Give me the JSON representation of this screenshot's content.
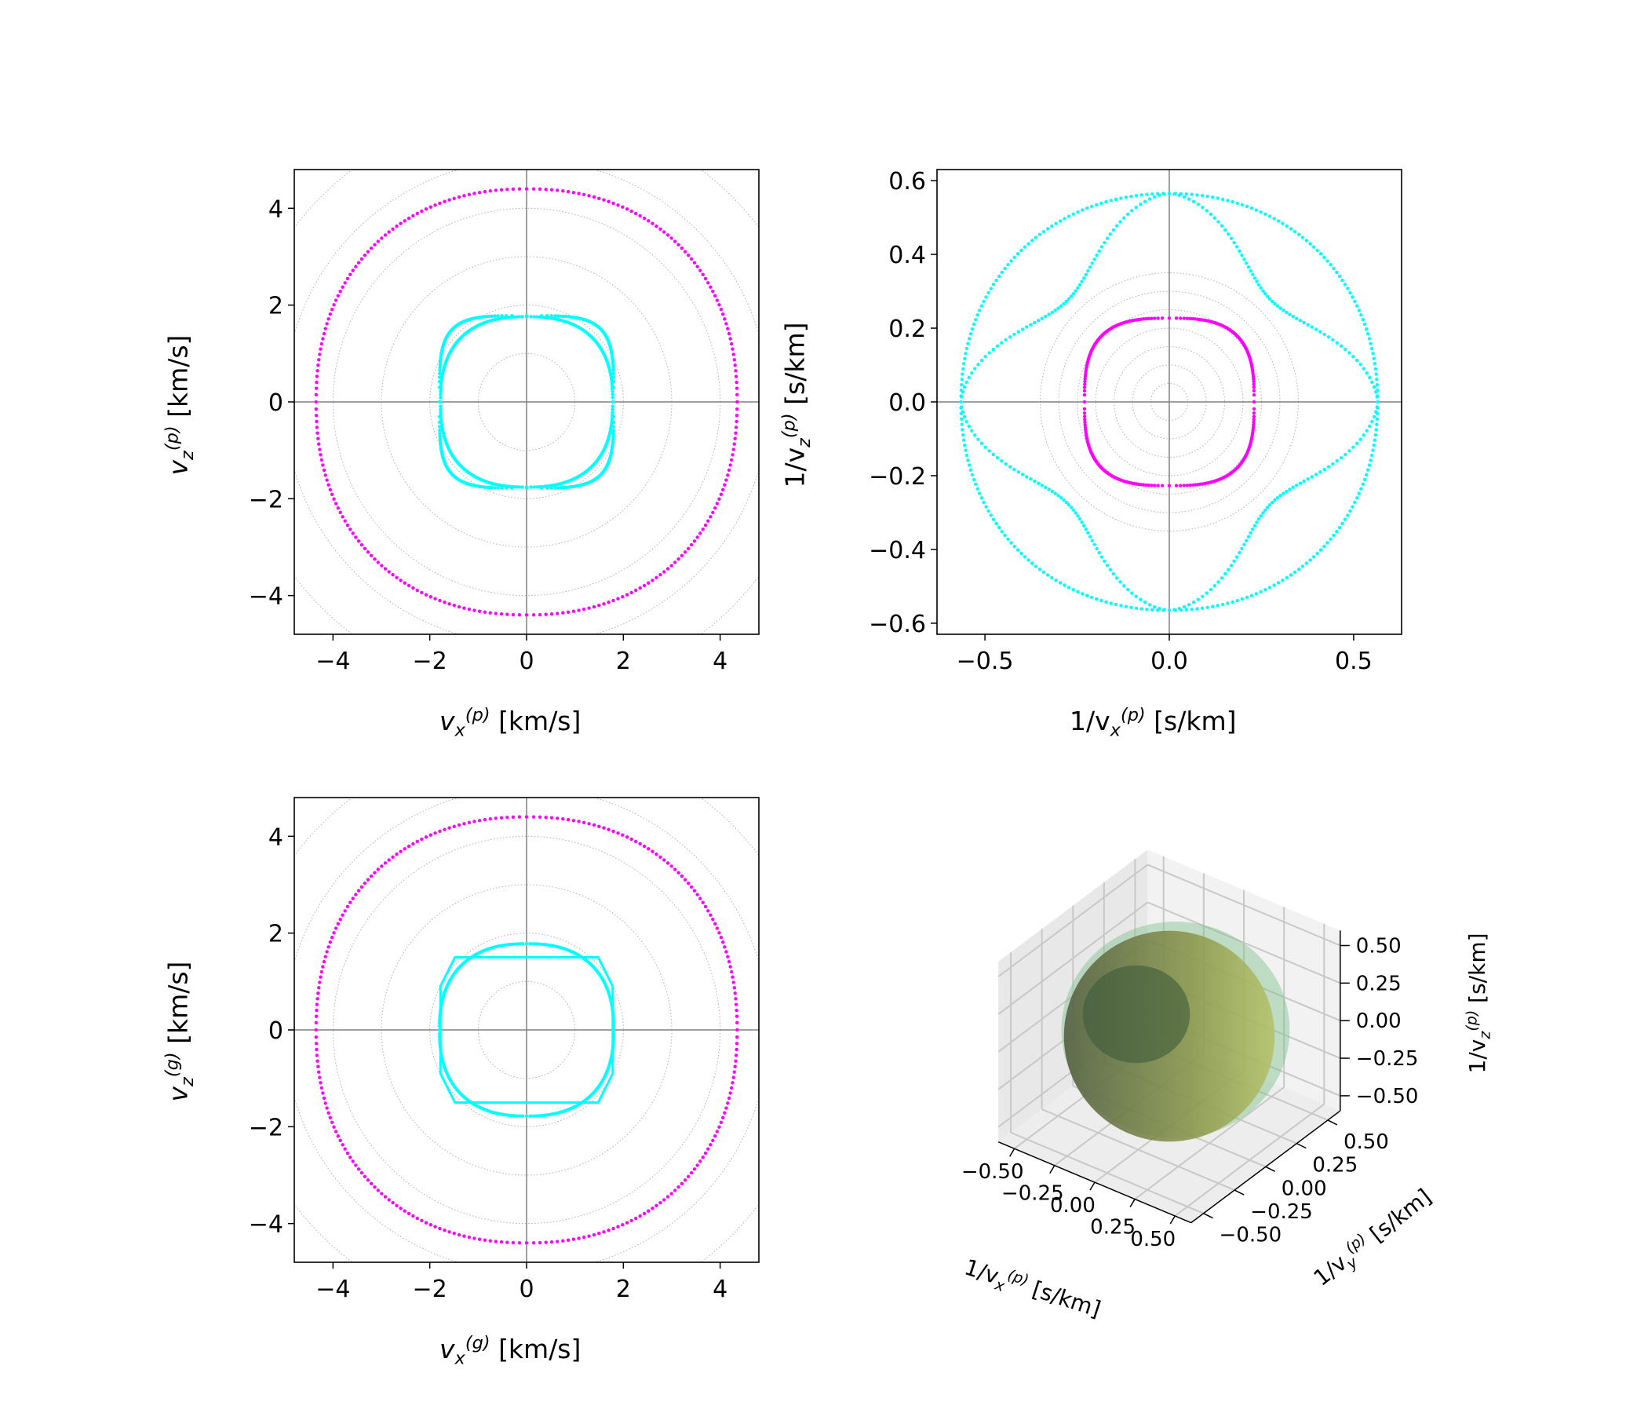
{
  "colors": {
    "cyan": "#00ffff",
    "magenta": "#ff00ff",
    "axis": "#000000",
    "zero_line": "#808080",
    "grid_circle": "#b0b0b0",
    "pane": "#f2f2f2",
    "grid3d": "#c8c8c8"
  },
  "chart_data": [
    {
      "type": "scatter",
      "panel": "top-left",
      "xlabel": {
        "base": "v",
        "sub": "x",
        "sup": "(p)",
        "unit": "[km/s]"
      },
      "ylabel": {
        "base": "v",
        "sub": "z",
        "sup": "(p)",
        "unit": "[km/s]"
      },
      "xlim": [
        -4.8,
        4.8
      ],
      "ylim": [
        -4.8,
        4.8
      ],
      "xticks": [
        -4,
        -2,
        0,
        2,
        4
      ],
      "yticks": [
        -4,
        -2,
        0,
        2,
        4
      ],
      "xtick_labels": [
        "−4",
        "−2",
        "0",
        "2",
        "4"
      ],
      "ytick_labels": [
        "−4",
        "−2",
        "0",
        "2",
        "4"
      ],
      "grid": "concentric dotted circles",
      "grid_radii": [
        1,
        2,
        3,
        4,
        5,
        6
      ],
      "series": [
        {
          "color": "magenta",
          "style": "dots",
          "shape": "superellipse",
          "a": 4.35,
          "b": 4.4,
          "n": 2.2
        },
        {
          "color": "cyan",
          "style": "dots",
          "shape": "superellipse",
          "a": 1.8,
          "b": 1.78,
          "n": 4.2
        },
        {
          "color": "cyan",
          "style": "dots",
          "shape": "superellipse",
          "a": 1.78,
          "b": 1.76,
          "n": 2.5
        }
      ]
    },
    {
      "type": "scatter",
      "panel": "top-right",
      "xlabel": {
        "base": "1/v",
        "sub": "x",
        "sup": "(p)",
        "unit": "[s/km]"
      },
      "ylabel": {
        "base": "1/v",
        "sub": "z",
        "sup": "(p)",
        "unit": "[s/km]"
      },
      "xlim": [
        -0.63,
        0.63
      ],
      "ylim": [
        -0.63,
        0.63
      ],
      "xticks": [
        -0.5,
        0.0,
        0.5
      ],
      "yticks": [
        -0.6,
        -0.4,
        -0.2,
        0.0,
        0.2,
        0.4,
        0.6
      ],
      "xtick_labels": [
        "−0.5",
        "0.0",
        "0.5"
      ],
      "ytick_labels": [
        "−0.6",
        "−0.4",
        "−0.2",
        "0.0",
        "0.2",
        "0.4",
        "0.6"
      ],
      "grid": "concentric dotted circles",
      "grid_radii": [
        0.05,
        0.1,
        0.15,
        0.2,
        0.25,
        0.3,
        0.35
      ],
      "series": [
        {
          "color": "magenta",
          "style": "dots",
          "shape": "superellipse",
          "a": 0.23,
          "b": 0.227,
          "n": 3.0
        },
        {
          "color": "cyan",
          "style": "dots",
          "shape": "lobed",
          "peaks": [
            [
              0,
              0.565
            ],
            [
              0.565,
              0
            ]
          ],
          "dip": 0.39,
          "n": 1.6
        },
        {
          "color": "cyan",
          "style": "dots",
          "shape": "superellipse",
          "a": 0.565,
          "b": 0.565,
          "n": 2.1
        }
      ]
    },
    {
      "type": "scatter",
      "panel": "bottom-left",
      "xlabel": {
        "base": "v",
        "sub": "x",
        "sup": "(g)",
        "unit": "[km/s]"
      },
      "ylabel": {
        "base": "v",
        "sub": "z",
        "sup": "(g)",
        "unit": "[km/s]"
      },
      "xlim": [
        -4.8,
        4.8
      ],
      "ylim": [
        -4.8,
        4.8
      ],
      "xticks": [
        -4,
        -2,
        0,
        2,
        4
      ],
      "yticks": [
        -4,
        -2,
        0,
        2,
        4
      ],
      "xtick_labels": [
        "−4",
        "−2",
        "0",
        "2",
        "4"
      ],
      "ytick_labels": [
        "−4",
        "−2",
        "0",
        "2",
        "4"
      ],
      "grid": "concentric dotted circles",
      "grid_radii": [
        1,
        2,
        3,
        4,
        5,
        6
      ],
      "series": [
        {
          "color": "magenta",
          "style": "dots",
          "shape": "superellipse",
          "a": 4.35,
          "b": 4.4,
          "n": 2.2
        },
        {
          "color": "cyan",
          "style": "dots",
          "shape": "superellipse",
          "a": 1.8,
          "b": 1.78,
          "n": 2.4
        },
        {
          "color": "cyan",
          "style": "polygon",
          "points": [
            [
              1.48,
              1.5
            ],
            [
              -1.48,
              1.5
            ],
            [
              -1.78,
              0.9
            ],
            [
              -1.78,
              -0.9
            ],
            [
              -1.48,
              -1.5
            ],
            [
              1.48,
              -1.5
            ],
            [
              1.78,
              -0.9
            ],
            [
              1.78,
              0.9
            ]
          ]
        }
      ]
    },
    {
      "type": "surface3d",
      "panel": "bottom-right",
      "xlabel": {
        "base": "1/v",
        "sub": "x",
        "sup": "(p)",
        "unit": "[s/km]"
      },
      "ylabel": {
        "base": "1/v",
        "sub": "y",
        "sup": "(p)",
        "unit": "[s/km]"
      },
      "zlabel": {
        "base": "1/v",
        "sub": "z",
        "sup": "(p)",
        "unit": "[s/km]"
      },
      "xtick_labels": [
        "−0.50",
        "−0.25",
        "0.00",
        "0.25",
        "0.50"
      ],
      "ytick_labels": [
        "−0.50",
        "−0.25",
        "0.00",
        "0.25",
        "0.50"
      ],
      "ztick_labels": [
        "−0.50",
        "−0.25",
        "0.00",
        "0.25",
        "0.50"
      ],
      "xticks": [
        -0.5,
        -0.25,
        0.0,
        0.25,
        0.5
      ],
      "yticks": [
        -0.5,
        -0.25,
        0.0,
        0.25,
        0.5
      ],
      "zticks": [
        -0.5,
        -0.25,
        0.0,
        0.25,
        0.5
      ],
      "lim": [
        -0.6,
        0.6
      ],
      "surfaces": [
        {
          "name": "",
          "radius": 0.565,
          "opacity": 0.55
        },
        {
          "name": "",
          "radius": 0.23,
          "opacity": 0.6
        }
      ]
    }
  ]
}
